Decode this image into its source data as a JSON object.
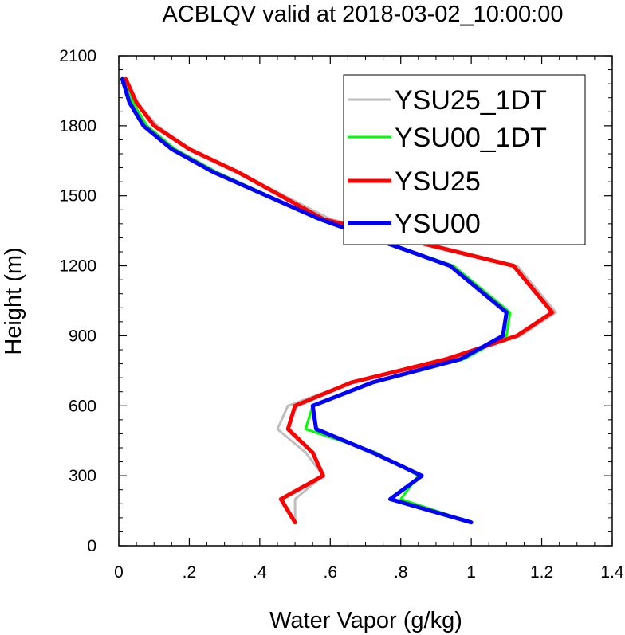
{
  "chart_data": {
    "type": "line",
    "title": "ACBLQV valid at 2018-03-02_10:00:00",
    "xlabel": "Water Vapor (g/kg)",
    "ylabel": "Height (m)",
    "xlim": [
      0,
      1.4
    ],
    "ylim": [
      0,
      2100
    ],
    "xticks": [
      0,
      0.2,
      0.4,
      0.6,
      0.8,
      1.0,
      1.2,
      1.4
    ],
    "xtick_labels": [
      "0",
      ".2",
      ".4",
      ".6",
      ".8",
      "1",
      "1.2",
      "1.4"
    ],
    "yticks": [
      0,
      300,
      600,
      900,
      1200,
      1500,
      1800,
      2100
    ],
    "ytick_labels": [
      "0",
      "300",
      "600",
      "900",
      "1200",
      "1500",
      "1800",
      "2100"
    ],
    "grid": false,
    "legend_position": "top-right",
    "series": [
      {
        "name": "YSU25_1DT",
        "color": "#bebebe",
        "width": 3,
        "points": [
          [
            0.5,
            100
          ],
          [
            0.5,
            200
          ],
          [
            0.58,
            300
          ],
          [
            0.53,
            400
          ],
          [
            0.45,
            500
          ],
          [
            0.48,
            600
          ],
          [
            0.66,
            700
          ],
          [
            0.92,
            800
          ],
          [
            1.14,
            900
          ],
          [
            1.24,
            1000
          ],
          [
            1.13,
            1200
          ],
          [
            0.6,
            1400
          ],
          [
            0.34,
            1600
          ],
          [
            0.2,
            1700
          ],
          [
            0.11,
            1800
          ],
          [
            0.05,
            1900
          ],
          [
            0.02,
            2000
          ]
        ]
      },
      {
        "name": "YSU00_1DT",
        "color": "#00ff00",
        "width": 3,
        "points": [
          [
            1.0,
            100
          ],
          [
            0.8,
            200
          ],
          [
            0.85,
            300
          ],
          [
            0.73,
            400
          ],
          [
            0.53,
            500
          ],
          [
            0.55,
            600
          ],
          [
            0.72,
            700
          ],
          [
            0.98,
            800
          ],
          [
            1.1,
            900
          ],
          [
            1.11,
            1000
          ],
          [
            0.95,
            1200
          ],
          [
            0.57,
            1400
          ],
          [
            0.28,
            1600
          ],
          [
            0.16,
            1700
          ],
          [
            0.08,
            1800
          ],
          [
            0.04,
            1900
          ],
          [
            0.01,
            2000
          ]
        ]
      },
      {
        "name": "YSU25",
        "color": "#ff0000",
        "width": 5,
        "points": [
          [
            0.5,
            100
          ],
          [
            0.46,
            200
          ],
          [
            0.58,
            300
          ],
          [
            0.55,
            400
          ],
          [
            0.48,
            500
          ],
          [
            0.5,
            600
          ],
          [
            0.66,
            700
          ],
          [
            0.93,
            800
          ],
          [
            1.13,
            900
          ],
          [
            1.23,
            1000
          ],
          [
            1.12,
            1200
          ],
          [
            0.58,
            1400
          ],
          [
            0.34,
            1600
          ],
          [
            0.2,
            1700
          ],
          [
            0.1,
            1800
          ],
          [
            0.05,
            1900
          ],
          [
            0.02,
            2000
          ]
        ]
      },
      {
        "name": "YSU00",
        "color": "#0000ff",
        "width": 5,
        "points": [
          [
            1.0,
            100
          ],
          [
            0.77,
            200
          ],
          [
            0.86,
            300
          ],
          [
            0.72,
            400
          ],
          [
            0.56,
            500
          ],
          [
            0.55,
            600
          ],
          [
            0.72,
            700
          ],
          [
            0.97,
            800
          ],
          [
            1.09,
            900
          ],
          [
            1.1,
            1000
          ],
          [
            0.94,
            1200
          ],
          [
            0.57,
            1400
          ],
          [
            0.27,
            1600
          ],
          [
            0.15,
            1700
          ],
          [
            0.07,
            1800
          ],
          [
            0.03,
            1900
          ],
          [
            0.01,
            2000
          ]
        ]
      }
    ]
  }
}
